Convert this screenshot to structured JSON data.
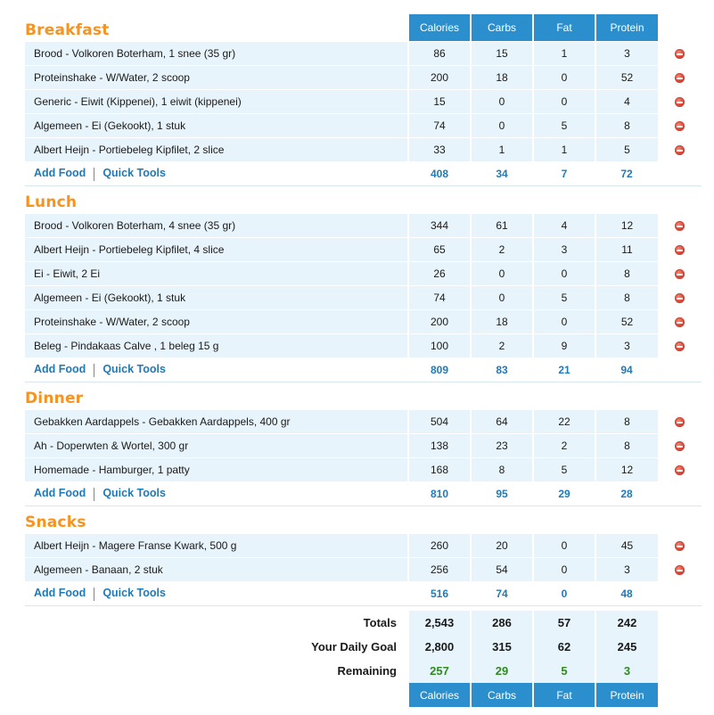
{
  "columns": [
    "Calories",
    "Carbs",
    "Fat",
    "Protein"
  ],
  "meals": [
    {
      "title": "Breakfast",
      "items": [
        {
          "name": "Brood - Volkoren Boterham, 1 snee (35 gr)",
          "calories": "86",
          "carbs": "15",
          "fat": "1",
          "protein": "3"
        },
        {
          "name": "Proteinshake - W/Water, 2 scoop",
          "calories": "200",
          "carbs": "18",
          "fat": "0",
          "protein": "52"
        },
        {
          "name": "Generic - Eiwit (Kippenei), 1 eiwit (kippenei)",
          "calories": "15",
          "carbs": "0",
          "fat": "0",
          "protein": "4"
        },
        {
          "name": "Algemeen - Ei (Gekookt), 1 stuk",
          "calories": "74",
          "carbs": "0",
          "fat": "5",
          "protein": "8"
        },
        {
          "name": "Albert Heijn - Portiebeleg Kipfilet, 2 slice",
          "calories": "33",
          "carbs": "1",
          "fat": "1",
          "protein": "5"
        }
      ],
      "totals": {
        "calories": "408",
        "carbs": "34",
        "fat": "7",
        "protein": "72"
      }
    },
    {
      "title": "Lunch",
      "items": [
        {
          "name": "Brood - Volkoren Boterham, 4 snee (35 gr)",
          "calories": "344",
          "carbs": "61",
          "fat": "4",
          "protein": "12"
        },
        {
          "name": "Albert Heijn - Portiebeleg Kipfilet, 4 slice",
          "calories": "65",
          "carbs": "2",
          "fat": "3",
          "protein": "11"
        },
        {
          "name": "Ei - Eiwit, 2 Ei",
          "calories": "26",
          "carbs": "0",
          "fat": "0",
          "protein": "8"
        },
        {
          "name": "Algemeen - Ei (Gekookt), 1 stuk",
          "calories": "74",
          "carbs": "0",
          "fat": "5",
          "protein": "8"
        },
        {
          "name": "Proteinshake - W/Water, 2 scoop",
          "calories": "200",
          "carbs": "18",
          "fat": "0",
          "protein": "52"
        },
        {
          "name": "Beleg - Pindakaas Calve , 1 beleg 15 g",
          "calories": "100",
          "carbs": "2",
          "fat": "9",
          "protein": "3"
        }
      ],
      "totals": {
        "calories": "809",
        "carbs": "83",
        "fat": "21",
        "protein": "94"
      }
    },
    {
      "title": "Dinner",
      "items": [
        {
          "name": "Gebakken Aardappels - Gebakken Aardappels, 400 gr",
          "calories": "504",
          "carbs": "64",
          "fat": "22",
          "protein": "8"
        },
        {
          "name": "Ah - Doperwten & Wortel, 300 gr",
          "calories": "138",
          "carbs": "23",
          "fat": "2",
          "protein": "8"
        },
        {
          "name": "Homemade - Hamburger, 1 patty",
          "calories": "168",
          "carbs": "8",
          "fat": "5",
          "protein": "12"
        }
      ],
      "totals": {
        "calories": "810",
        "carbs": "95",
        "fat": "29",
        "protein": "28"
      }
    },
    {
      "title": "Snacks",
      "items": [
        {
          "name": "Albert Heijn - Magere Franse Kwark, 500 g",
          "calories": "260",
          "carbs": "20",
          "fat": "0",
          "protein": "45"
        },
        {
          "name": "Algemeen - Banaan, 2 stuk",
          "calories": "256",
          "carbs": "54",
          "fat": "0",
          "protein": "3"
        }
      ],
      "totals": {
        "calories": "516",
        "carbs": "74",
        "fat": "0",
        "protein": "48"
      }
    }
  ],
  "links": {
    "add_food": "Add Food",
    "quick_tools": "Quick Tools"
  },
  "summary": {
    "totals": {
      "label": "Totals",
      "calories": "2,543",
      "carbs": "286",
      "fat": "57",
      "protein": "242"
    },
    "goal": {
      "label": "Your Daily Goal",
      "calories": "2,800",
      "carbs": "315",
      "fat": "62",
      "protein": "245"
    },
    "remaining": {
      "label": "Remaining",
      "calories": "257",
      "carbs": "29",
      "fat": "5",
      "protein": "3"
    }
  },
  "colors": {
    "meal_title": "#f7931e",
    "header_bg": "#2b8fce",
    "row_bg": "#e8f4fb",
    "link": "#1f7ab8",
    "remaining": "#2e8b1e",
    "delete_icon": "#d8412e"
  },
  "icons": {
    "delete": "remove-circle-icon"
  }
}
